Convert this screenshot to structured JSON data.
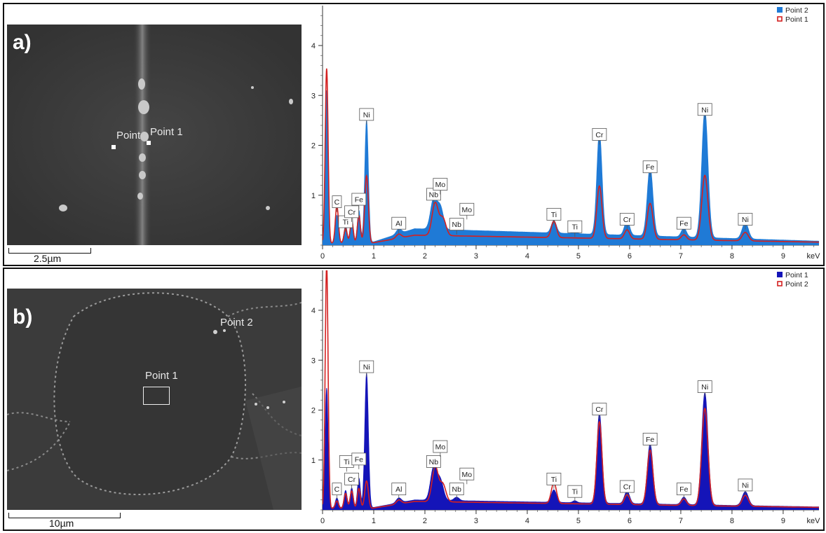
{
  "panels": [
    {
      "label": "a)",
      "scale_bar": "2.5µm",
      "sem_points": [
        "Point",
        "Point 1"
      ]
    },
    {
      "label": "b)",
      "scale_bar": "10µm",
      "sem_points": [
        "Point 1",
        "Point 2"
      ]
    }
  ],
  "colors": {
    "filled_series_a": "#1f7ad6",
    "filled_series_b": "#1414b8",
    "outline_series": "#d42020",
    "axis": "#333333"
  },
  "chart_data": [
    {
      "type": "area",
      "xlabel": "keV",
      "xlim": [
        0,
        9.7
      ],
      "ylim": [
        0,
        4.8
      ],
      "x_ticks": [
        0,
        1,
        2,
        3,
        4,
        5,
        6,
        7,
        8,
        9
      ],
      "y_ticks": [
        1,
        2,
        3,
        4
      ],
      "legend_position": "top-right",
      "legend": [
        "Point 2",
        "Point 1"
      ],
      "series": [
        {
          "name": "Point 2",
          "style": "filled",
          "baseline": 0.05,
          "peaks": [
            {
              "x": 0.08,
              "h": 3.05,
              "w": 0.028
            },
            {
              "x": 0.28,
              "h": 0.55,
              "w": 0.03
            },
            {
              "x": 0.45,
              "h": 0.35,
              "w": 0.03
            },
            {
              "x": 0.57,
              "h": 0.5,
              "w": 0.03
            },
            {
              "x": 0.71,
              "h": 0.65,
              "w": 0.03
            },
            {
              "x": 0.86,
              "h": 2.45,
              "w": 0.035
            },
            {
              "x": 1.49,
              "h": 0.1,
              "w": 0.05
            },
            {
              "x": 2.17,
              "h": 0.6,
              "w": 0.06
            },
            {
              "x": 2.3,
              "h": 0.45,
              "w": 0.06
            },
            {
              "x": 2.62,
              "h": 0.08,
              "w": 0.05
            },
            {
              "x": 4.52,
              "h": 0.25,
              "w": 0.05
            },
            {
              "x": 4.93,
              "h": 0.05,
              "w": 0.04
            },
            {
              "x": 5.41,
              "h": 2.05,
              "w": 0.05
            },
            {
              "x": 5.95,
              "h": 0.3,
              "w": 0.05
            },
            {
              "x": 6.4,
              "h": 1.38,
              "w": 0.055
            },
            {
              "x": 7.06,
              "h": 0.18,
              "w": 0.05
            },
            {
              "x": 7.47,
              "h": 2.55,
              "w": 0.06
            },
            {
              "x": 8.26,
              "h": 0.33,
              "w": 0.06
            }
          ],
          "background": {
            "x0": 0.95,
            "peak_x": 1.8,
            "peak_h": 0.28,
            "end_x": 9.7,
            "end_h": 0.03
          }
        },
        {
          "name": "Point 1",
          "style": "outline",
          "baseline": 0.04,
          "peaks": [
            {
              "x": 0.08,
              "h": 3.5,
              "w": 0.028
            },
            {
              "x": 0.28,
              "h": 0.75,
              "w": 0.03
            },
            {
              "x": 0.45,
              "h": 0.3,
              "w": 0.03
            },
            {
              "x": 0.57,
              "h": 0.45,
              "w": 0.03
            },
            {
              "x": 0.71,
              "h": 0.55,
              "w": 0.03
            },
            {
              "x": 0.86,
              "h": 1.35,
              "w": 0.035
            },
            {
              "x": 1.49,
              "h": 0.08,
              "w": 0.05
            },
            {
              "x": 2.2,
              "h": 0.65,
              "w": 0.06
            },
            {
              "x": 2.35,
              "h": 0.35,
              "w": 0.06
            },
            {
              "x": 4.52,
              "h": 0.33,
              "w": 0.05
            },
            {
              "x": 5.41,
              "h": 1.05,
              "w": 0.05
            },
            {
              "x": 5.95,
              "h": 0.18,
              "w": 0.05
            },
            {
              "x": 6.4,
              "h": 0.72,
              "w": 0.055
            },
            {
              "x": 7.06,
              "h": 0.1,
              "w": 0.05
            },
            {
              "x": 7.47,
              "h": 1.3,
              "w": 0.06
            },
            {
              "x": 8.26,
              "h": 0.17,
              "w": 0.06
            }
          ],
          "background": {
            "x0": 0.95,
            "peak_x": 1.8,
            "peak_h": 0.16,
            "end_x": 9.7,
            "end_h": 0.02
          }
        }
      ],
      "annotations": [
        {
          "text": "C",
          "x": 0.28,
          "y": 0.75
        },
        {
          "text": "Ti",
          "x": 0.45,
          "y": 0.35
        },
        {
          "text": "Cr",
          "x": 0.57,
          "y": 0.55
        },
        {
          "text": "Fe",
          "x": 0.71,
          "y": 0.8
        },
        {
          "text": "Ni",
          "x": 0.86,
          "y": 2.5
        },
        {
          "text": "Al",
          "x": 1.49,
          "y": 0.32
        },
        {
          "text": "Nb",
          "x": 2.17,
          "y": 0.9
        },
        {
          "text": "Mo",
          "x": 2.3,
          "y": 1.1
        },
        {
          "text": "Nb",
          "x": 2.62,
          "y": 0.3
        },
        {
          "text": "Mo",
          "x": 2.82,
          "y": 0.6
        },
        {
          "text": "Ti",
          "x": 4.52,
          "y": 0.5
        },
        {
          "text": "Ti",
          "x": 4.93,
          "y": 0.25
        },
        {
          "text": "Cr",
          "x": 5.41,
          "y": 2.1
        },
        {
          "text": "Cr",
          "x": 5.95,
          "y": 0.4
        },
        {
          "text": "Fe",
          "x": 6.4,
          "y": 1.45
        },
        {
          "text": "Fe",
          "x": 7.06,
          "y": 0.32
        },
        {
          "text": "Ni",
          "x": 7.47,
          "y": 2.6
        },
        {
          "text": "Ni",
          "x": 8.26,
          "y": 0.4
        }
      ]
    },
    {
      "type": "area",
      "xlabel": "keV",
      "xlim": [
        0,
        9.7
      ],
      "ylim": [
        0,
        4.8
      ],
      "x_ticks": [
        0,
        1,
        2,
        3,
        4,
        5,
        6,
        7,
        8,
        9
      ],
      "y_ticks": [
        1,
        2,
        3,
        4
      ],
      "legend_position": "top-right",
      "legend": [
        "Point 1",
        "Point 2"
      ],
      "series": [
        {
          "name": "Point 1",
          "style": "filled",
          "baseline": 0.04,
          "peaks": [
            {
              "x": 0.08,
              "h": 2.4,
              "w": 0.028
            },
            {
              "x": 0.28,
              "h": 0.2,
              "w": 0.03
            },
            {
              "x": 0.45,
              "h": 0.35,
              "w": 0.03
            },
            {
              "x": 0.57,
              "h": 0.4,
              "w": 0.03
            },
            {
              "x": 0.71,
              "h": 0.6,
              "w": 0.03
            },
            {
              "x": 0.86,
              "h": 2.7,
              "w": 0.035
            },
            {
              "x": 1.49,
              "h": 0.1,
              "w": 0.05
            },
            {
              "x": 2.17,
              "h": 0.65,
              "w": 0.06
            },
            {
              "x": 2.3,
              "h": 0.4,
              "w": 0.06
            },
            {
              "x": 2.62,
              "h": 0.07,
              "w": 0.05
            },
            {
              "x": 4.52,
              "h": 0.25,
              "w": 0.05
            },
            {
              "x": 4.93,
              "h": 0.04,
              "w": 0.04
            },
            {
              "x": 5.41,
              "h": 1.8,
              "w": 0.05
            },
            {
              "x": 5.95,
              "h": 0.25,
              "w": 0.05
            },
            {
              "x": 6.4,
              "h": 1.2,
              "w": 0.055
            },
            {
              "x": 7.06,
              "h": 0.15,
              "w": 0.05
            },
            {
              "x": 7.47,
              "h": 2.25,
              "w": 0.06
            },
            {
              "x": 8.26,
              "h": 0.28,
              "w": 0.06
            }
          ],
          "background": {
            "x0": 0.95,
            "peak_x": 1.8,
            "peak_h": 0.16,
            "end_x": 9.7,
            "end_h": 0.02
          }
        },
        {
          "name": "Point 2",
          "style": "outline",
          "baseline": 0.03,
          "peaks": [
            {
              "x": 0.08,
              "h": 4.9,
              "w": 0.028
            },
            {
              "x": 0.28,
              "h": 0.15,
              "w": 0.03
            },
            {
              "x": 0.45,
              "h": 0.3,
              "w": 0.03
            },
            {
              "x": 0.57,
              "h": 0.35,
              "w": 0.03
            },
            {
              "x": 0.71,
              "h": 0.4,
              "w": 0.03
            },
            {
              "x": 0.86,
              "h": 0.55,
              "w": 0.035
            },
            {
              "x": 1.49,
              "h": 0.08,
              "w": 0.05
            },
            {
              "x": 2.2,
              "h": 0.7,
              "w": 0.06
            },
            {
              "x": 2.35,
              "h": 0.35,
              "w": 0.06
            },
            {
              "x": 4.52,
              "h": 0.42,
              "w": 0.05
            },
            {
              "x": 5.41,
              "h": 1.65,
              "w": 0.05
            },
            {
              "x": 5.95,
              "h": 0.2,
              "w": 0.05
            },
            {
              "x": 6.4,
              "h": 1.1,
              "w": 0.055
            },
            {
              "x": 7.06,
              "h": 0.13,
              "w": 0.05
            },
            {
              "x": 7.47,
              "h": 1.95,
              "w": 0.06
            },
            {
              "x": 8.26,
              "h": 0.22,
              "w": 0.06
            }
          ],
          "background": {
            "x0": 0.95,
            "peak_x": 1.8,
            "peak_h": 0.14,
            "end_x": 9.7,
            "end_h": 0.02
          }
        }
      ],
      "annotations": [
        {
          "text": "C",
          "x": 0.28,
          "y": 0.3
        },
        {
          "text": "Ti",
          "x": 0.47,
          "y": 0.85
        },
        {
          "text": "Cr",
          "x": 0.57,
          "y": 0.5
        },
        {
          "text": "Fe",
          "x": 0.71,
          "y": 0.9
        },
        {
          "text": "Ni",
          "x": 0.86,
          "y": 2.75
        },
        {
          "text": "Al",
          "x": 1.49,
          "y": 0.3
        },
        {
          "text": "Nb",
          "x": 2.17,
          "y": 0.85
        },
        {
          "text": "Mo",
          "x": 2.3,
          "y": 1.15
        },
        {
          "text": "Nb",
          "x": 2.62,
          "y": 0.3
        },
        {
          "text": "Mo",
          "x": 2.82,
          "y": 0.6
        },
        {
          "text": "Ti",
          "x": 4.52,
          "y": 0.5
        },
        {
          "text": "Ti",
          "x": 4.93,
          "y": 0.25
        },
        {
          "text": "Cr",
          "x": 5.41,
          "y": 1.9
        },
        {
          "text": "Cr",
          "x": 5.95,
          "y": 0.35
        },
        {
          "text": "Fe",
          "x": 6.4,
          "y": 1.3
        },
        {
          "text": "Fe",
          "x": 7.06,
          "y": 0.3
        },
        {
          "text": "Ni",
          "x": 7.47,
          "y": 2.35
        },
        {
          "text": "Ni",
          "x": 8.26,
          "y": 0.38
        }
      ]
    }
  ]
}
